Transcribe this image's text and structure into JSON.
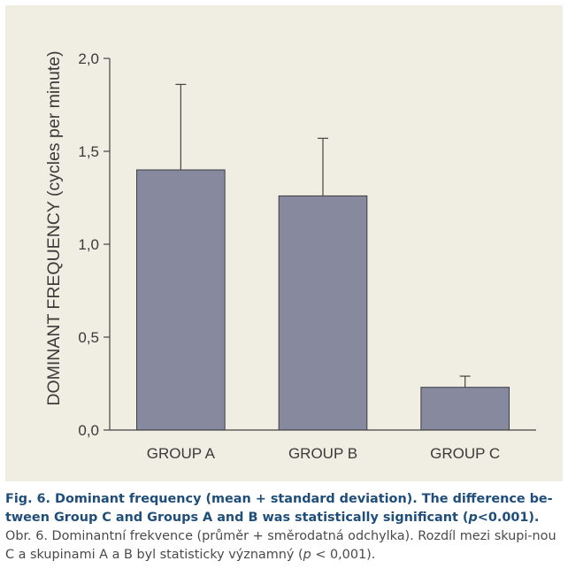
{
  "chart_data": {
    "type": "bar",
    "categories": [
      "GROUP A",
      "GROUP B",
      "GROUP C"
    ],
    "values": [
      1.4,
      1.26,
      0.23
    ],
    "error_upper": [
      1.86,
      1.57,
      0.29
    ],
    "ylabel": "DOMINANT FREQUENCY  (cycles per minute)",
    "ylim": [
      0,
      2.0
    ],
    "yticks": [
      0.0,
      0.5,
      1.0,
      1.5,
      2.0
    ],
    "ytick_labels": [
      "0,0",
      "0,5",
      "1,0",
      "1,5",
      "2,0"
    ],
    "grid": false,
    "bar_color": "#878a9e"
  },
  "caption": {
    "en_prefix": "Fig. 6. Dominant frequency (mean + standard deviation). The difference be-tween Group C and Groups A and B was statistically significant (",
    "en_p": "p",
    "en_suffix": "<0.001).",
    "cz_prefix": "Obr. 6. Dominantní frekvence (průměr + směrodatná odchylka). Rozdíl mezi skupi-nou C a skupinami  A a B byl statisticky významný (",
    "cz_p": "p",
    "cz_suffix": " < 0,001)."
  }
}
